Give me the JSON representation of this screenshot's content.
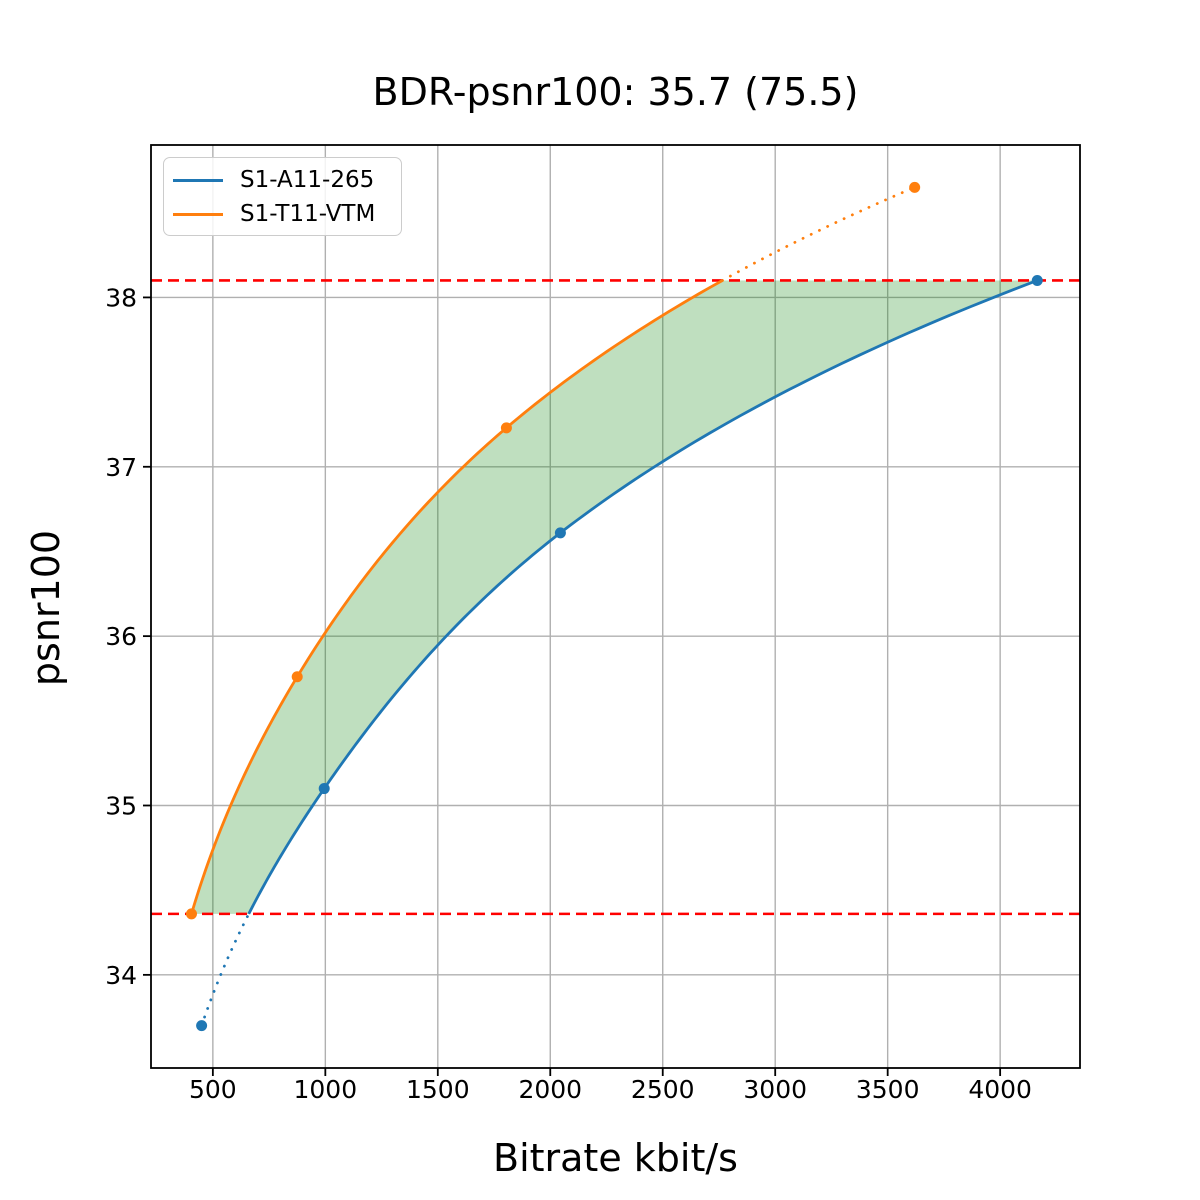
{
  "chart_data": {
    "type": "line",
    "title": "BDR-psnr100: 35.7 (75.5)",
    "xlabel": "Bitrate kbit/s",
    "ylabel": "psnr100",
    "xlim": [
      225,
      4355
    ],
    "ylim": [
      33.45,
      38.9
    ],
    "xticks": [
      "500",
      "1000",
      "1500",
      "2000",
      "2500",
      "3000",
      "3500",
      "4000"
    ],
    "xtick_values": [
      500,
      1000,
      1500,
      2000,
      2500,
      3000,
      3500,
      4000
    ],
    "yticks": [
      "34",
      "35",
      "36",
      "37",
      "38"
    ],
    "ytick_values": [
      34,
      35,
      36,
      37,
      38
    ],
    "grid": true,
    "grid_color": "#b0b0b0",
    "legend_position": "upper-left",
    "interpolation": "pchip-log-x",
    "series": [
      {
        "name": "S1-A11-265",
        "color": "#1f77b4",
        "x": [
          450,
          995,
          2045,
          4165
        ],
        "y": [
          33.7,
          35.1,
          36.61,
          38.1
        ],
        "dotted_segment": "below-lower-ref"
      },
      {
        "name": "S1-T11-VTM",
        "color": "#ff7f0e",
        "x": [
          405,
          875,
          1805,
          3620
        ],
        "y": [
          34.36,
          35.76,
          37.23,
          38.65
        ],
        "dotted_segment": "above-upper-ref"
      }
    ],
    "ref_lines": {
      "color": "#ff0000",
      "style": "dashed",
      "lower": 34.36,
      "upper": 38.1
    },
    "fill_between": {
      "color": "#008000",
      "opacity": 0.25,
      "psnr_range": [
        34.36,
        38.1
      ]
    }
  }
}
